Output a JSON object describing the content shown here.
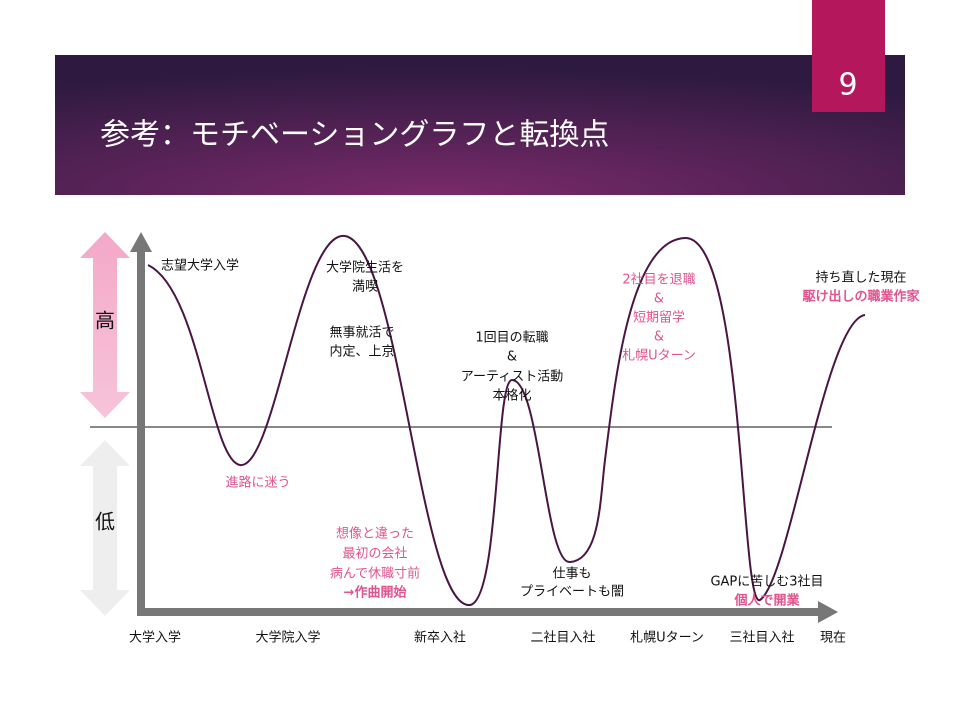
{
  "page_number": "9",
  "title": "参考：モチベーショングラフと転換点",
  "y_labels": {
    "high": "高",
    "low": "低"
  },
  "x_labels": [
    "大学入学",
    "大学院入学",
    "新卒入社",
    "二社目入社",
    "札幌Uターン",
    "三社目入社",
    "現在"
  ],
  "annotations": [
    {
      "lines": [
        "志望大学入学"
      ]
    },
    {
      "lines": [
        "大学院生活を",
        "満喫"
      ]
    },
    {
      "lines": [
        "無事就活で",
        "内定、上京"
      ]
    },
    {
      "lines": [
        "進路に迷う"
      ]
    },
    {
      "lines": [
        "想像と違った",
        "最初の会社",
        "病んで休職寸前",
        "→作曲開始"
      ]
    },
    {
      "lines": [
        "1回目の転職",
        "&",
        "アーティスト活動",
        "本格化"
      ]
    },
    {
      "lines": [
        "仕事も",
        "プライベートも闇"
      ]
    },
    {
      "lines": [
        "2社目を退職",
        "&",
        "短期留学",
        "&",
        "札幌Uターン"
      ]
    },
    {
      "lines": [
        "GAPに苦しむ3社目",
        "個人で開業"
      ]
    },
    {
      "lines": [
        "持ち直した現在",
        "駆け出しの職業作家"
      ]
    }
  ]
}
